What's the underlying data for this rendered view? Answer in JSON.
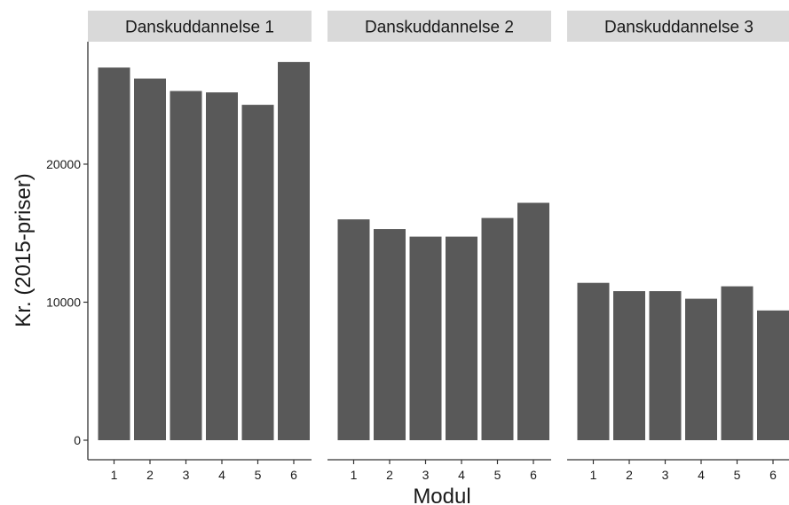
{
  "chart_data": {
    "type": "bar",
    "layout": "facet",
    "xlabel": "Modul",
    "ylabel": "Kr. (2015-priser)",
    "ylim": [
      0,
      27500
    ],
    "yticks": [
      0,
      10000,
      20000
    ],
    "ytick_labels": [
      "0",
      "10000",
      "20000"
    ],
    "grid": false,
    "bar_color": "#595959",
    "strip_color": "#d9d9d9",
    "categories": [
      "1",
      "2",
      "3",
      "4",
      "5",
      "6"
    ],
    "facets": [
      {
        "name": "Danskuddannelse 1",
        "values": [
          27000,
          26200,
          25300,
          25200,
          24300,
          27400
        ]
      },
      {
        "name": "Danskuddannelse 2",
        "values": [
          16000,
          15300,
          14750,
          14750,
          16100,
          17200
        ]
      },
      {
        "name": "Danskuddannelse 3",
        "values": [
          11400,
          10800,
          10800,
          10250,
          11150,
          9400
        ]
      }
    ]
  }
}
